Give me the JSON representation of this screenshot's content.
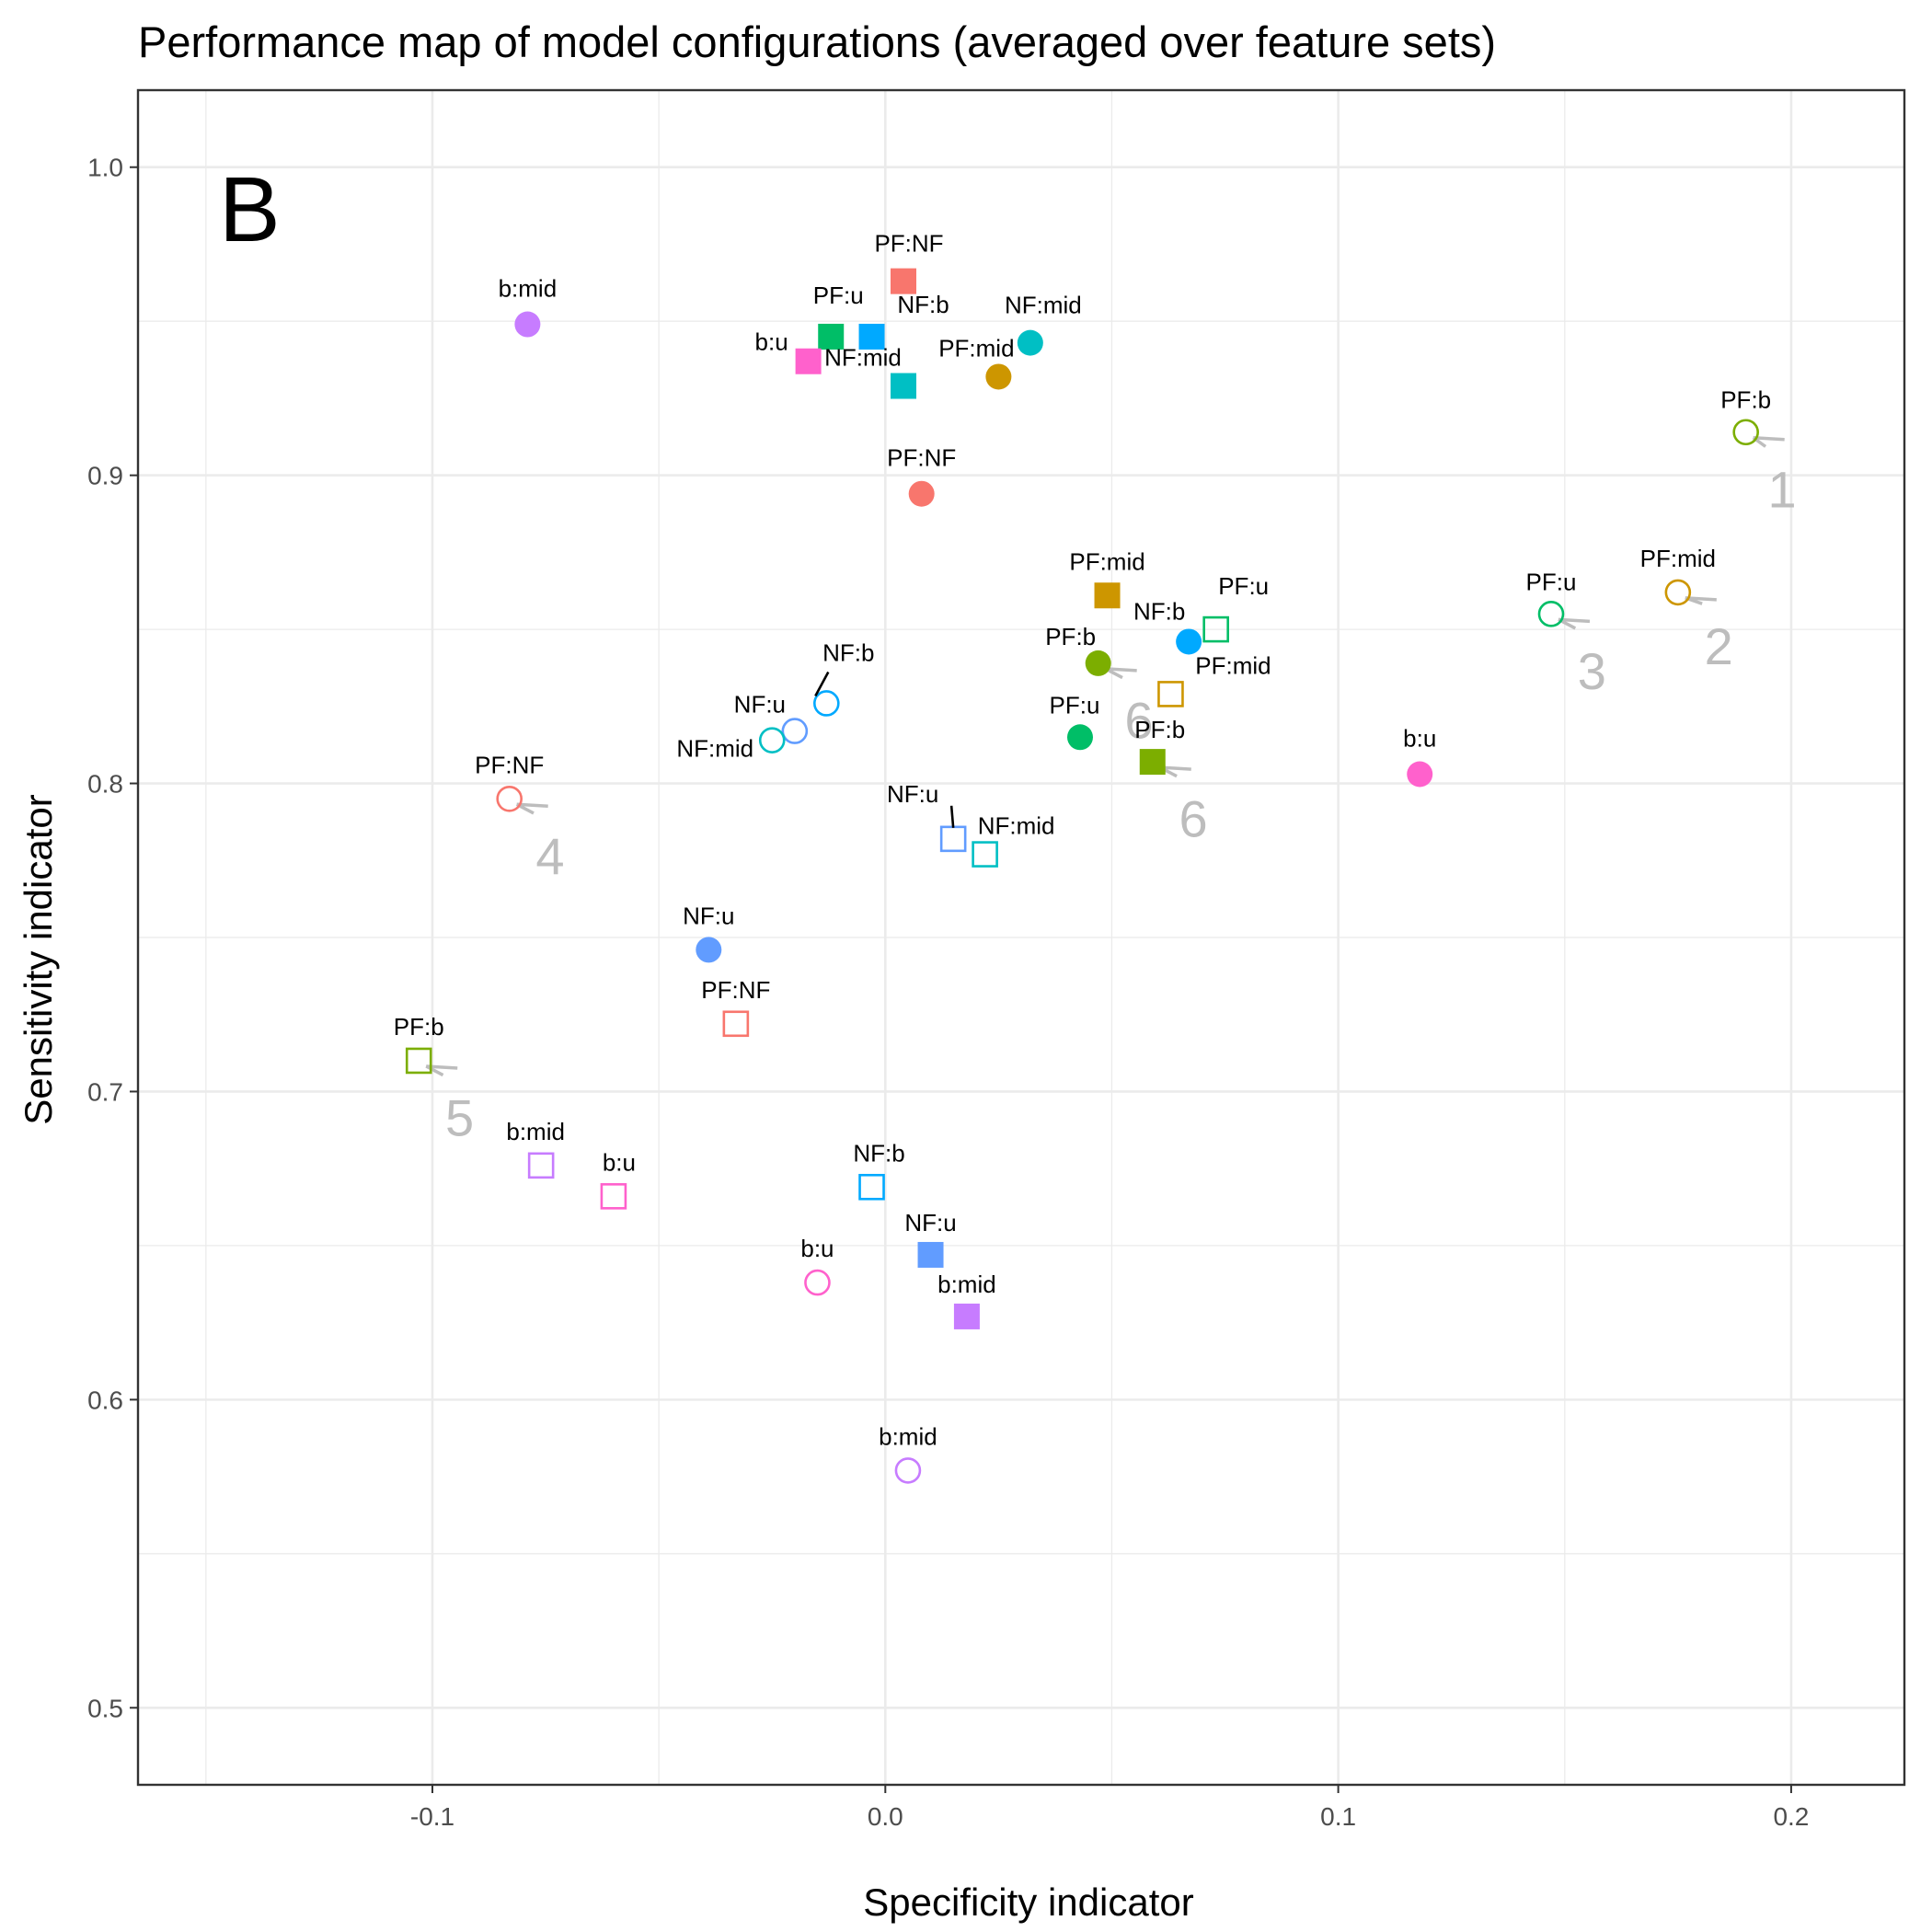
{
  "chart_data": {
    "type": "scatter",
    "title": "Performance map of model configurations (averaged over feature sets)",
    "xlabel": "Specificity indicator",
    "ylabel": "Sensitivity indicator",
    "panel_letter": "B",
    "xlim": [
      -0.165,
      0.225
    ],
    "ylim": [
      0.475,
      1.025
    ],
    "x_ticks": [
      -0.1,
      0.0,
      0.1,
      0.2
    ],
    "x_tick_labels": [
      "-0.1",
      "0.0",
      "0.1",
      "0.2"
    ],
    "y_ticks": [
      0.5,
      0.6,
      0.7,
      0.8,
      0.9,
      1.0
    ],
    "y_tick_labels": [
      "0.5",
      "0.6",
      "0.7",
      "0.8",
      "0.9",
      "1.0"
    ],
    "grid": true,
    "legend": "none",
    "colors": {
      "PF:NF": "#F8766D",
      "PF:mid": "#CD9600",
      "PF:b": "#7CAE00",
      "PF:u": "#00BE67",
      "NF:mid": "#00BFC4",
      "NF:b": "#00A9FF",
      "NF:u": "#619CFF",
      "b:mid": "#C77CFF",
      "b:u": "#FF61CC"
    },
    "points": [
      {
        "label": "b:mid",
        "x": -0.079,
        "y": 0.949,
        "shape": "filled-circle",
        "color": "#C77CFF"
      },
      {
        "label": "PF:NF",
        "x": 0.008,
        "y": 0.894,
        "shape": "filled-circle",
        "color": "#F8766D"
      },
      {
        "label": "NF:mid",
        "x": 0.032,
        "y": 0.943,
        "shape": "filled-circle",
        "color": "#00BFC4"
      },
      {
        "label": "PF:mid",
        "x": 0.025,
        "y": 0.932,
        "shape": "filled-circle",
        "color": "#CD9600"
      },
      {
        "label": "PF:b",
        "x": 0.047,
        "y": 0.839,
        "shape": "filled-circle",
        "color": "#7CAE00"
      },
      {
        "label": "NF:b",
        "x": 0.067,
        "y": 0.846,
        "shape": "filled-circle",
        "color": "#00A9FF"
      },
      {
        "label": "PF:u",
        "x": 0.043,
        "y": 0.815,
        "shape": "filled-circle",
        "color": "#00BE67"
      },
      {
        "label": "b:u",
        "x": 0.118,
        "y": 0.803,
        "shape": "filled-circle",
        "color": "#FF61CC"
      },
      {
        "label": "NF:u",
        "x": -0.039,
        "y": 0.746,
        "shape": "filled-circle",
        "color": "#619CFF"
      },
      {
        "label": "PF:NF",
        "x": 0.004,
        "y": 0.963,
        "shape": "filled-square",
        "color": "#F8766D"
      },
      {
        "label": "PF:u",
        "x": -0.012,
        "y": 0.945,
        "shape": "filled-square",
        "color": "#00BE67"
      },
      {
        "label": "NF:b",
        "x": -0.003,
        "y": 0.945,
        "shape": "filled-square",
        "color": "#00A9FF"
      },
      {
        "label": "b:u",
        "x": -0.017,
        "y": 0.937,
        "shape": "filled-square",
        "color": "#FF61CC"
      },
      {
        "label": "NF:mid",
        "x": 0.004,
        "y": 0.929,
        "shape": "filled-square",
        "color": "#00BFC4"
      },
      {
        "label": "PF:mid",
        "x": 0.049,
        "y": 0.861,
        "shape": "filled-square",
        "color": "#CD9600"
      },
      {
        "label": "PF:b",
        "x": 0.059,
        "y": 0.807,
        "shape": "filled-square",
        "color": "#7CAE00"
      },
      {
        "label": "NF:u",
        "x": 0.01,
        "y": 0.647,
        "shape": "filled-square",
        "color": "#619CFF"
      },
      {
        "label": "b:mid",
        "x": 0.018,
        "y": 0.627,
        "shape": "filled-square",
        "color": "#C77CFF"
      },
      {
        "label": "PF:b",
        "x": 0.19,
        "y": 0.914,
        "shape": "open-circle",
        "color": "#7CAE00"
      },
      {
        "label": "PF:mid",
        "x": 0.175,
        "y": 0.862,
        "shape": "open-circle",
        "color": "#CD9600"
      },
      {
        "label": "PF:u",
        "x": 0.147,
        "y": 0.855,
        "shape": "open-circle",
        "color": "#00BE67"
      },
      {
        "label": "NF:b",
        "x": -0.013,
        "y": 0.826,
        "shape": "open-circle",
        "color": "#00A9FF"
      },
      {
        "label": "NF:u",
        "x": -0.02,
        "y": 0.817,
        "shape": "open-circle",
        "color": "#619CFF"
      },
      {
        "label": "NF:mid",
        "x": -0.025,
        "y": 0.814,
        "shape": "open-circle",
        "color": "#00BFC4"
      },
      {
        "label": "PF:NF",
        "x": -0.083,
        "y": 0.795,
        "shape": "open-circle",
        "color": "#F8766D"
      },
      {
        "label": "b:u",
        "x": -0.015,
        "y": 0.638,
        "shape": "open-circle",
        "color": "#FF61CC"
      },
      {
        "label": "b:mid",
        "x": 0.005,
        "y": 0.577,
        "shape": "open-circle",
        "color": "#C77CFF"
      },
      {
        "label": "PF:u",
        "x": 0.073,
        "y": 0.85,
        "shape": "open-square",
        "color": "#00BE67"
      },
      {
        "label": "PF:mid",
        "x": 0.063,
        "y": 0.829,
        "shape": "open-square",
        "color": "#CD9600"
      },
      {
        "label": "NF:u",
        "x": 0.015,
        "y": 0.782,
        "shape": "open-square",
        "color": "#619CFF"
      },
      {
        "label": "NF:mid",
        "x": 0.022,
        "y": 0.777,
        "shape": "open-square",
        "color": "#00BFC4"
      },
      {
        "label": "PF:NF",
        "x": -0.033,
        "y": 0.722,
        "shape": "open-square",
        "color": "#F8766D"
      },
      {
        "label": "PF:b",
        "x": -0.103,
        "y": 0.71,
        "shape": "open-square",
        "color": "#7CAE00"
      },
      {
        "label": "b:mid",
        "x": -0.076,
        "y": 0.676,
        "shape": "open-square",
        "color": "#C77CFF"
      },
      {
        "label": "b:u",
        "x": -0.06,
        "y": 0.666,
        "shape": "open-square",
        "color": "#FF61CC"
      },
      {
        "label": "NF:b",
        "x": -0.003,
        "y": 0.669,
        "shape": "open-square",
        "color": "#00A9FF"
      }
    ],
    "annotations": [
      {
        "text": "1",
        "x": 0.198,
        "y": 0.895,
        "target_x": 0.19,
        "target_y": 0.914
      },
      {
        "text": "2",
        "x": 0.184,
        "y": 0.844,
        "target_x": 0.175,
        "target_y": 0.862
      },
      {
        "text": "3",
        "x": 0.156,
        "y": 0.836,
        "target_x": 0.147,
        "target_y": 0.855
      },
      {
        "text": "4",
        "x": -0.074,
        "y": 0.776,
        "target_x": -0.083,
        "target_y": 0.795
      },
      {
        "text": "5",
        "x": -0.094,
        "y": 0.691,
        "target_x": -0.103,
        "target_y": 0.71
      },
      {
        "text": "6",
        "x": 0.056,
        "y": 0.82,
        "target_x": 0.047,
        "target_y": 0.839
      },
      {
        "text": "6",
        "x": 0.068,
        "y": 0.788,
        "target_x": 0.059,
        "target_y": 0.807
      }
    ]
  }
}
